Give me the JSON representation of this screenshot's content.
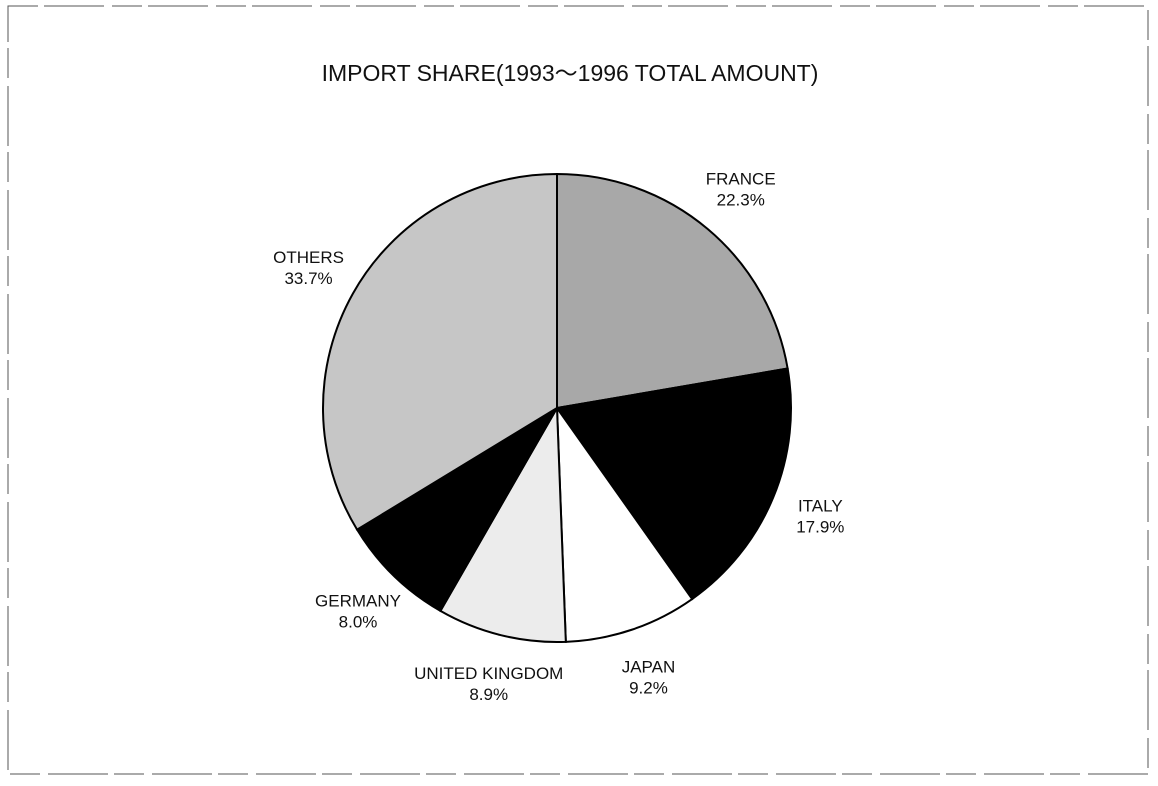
{
  "chart_data": {
    "type": "pie",
    "title": "IMPORT SHARE(1993～1996 TOTAL AMOUNT)",
    "categories": [
      "FRANCE",
      "ITALY",
      "JAPAN",
      "UNITED KINGDOM",
      "GERMANY",
      "OTHERS"
    ],
    "values": [
      22.3,
      17.9,
      9.2,
      8.9,
      8.0,
      33.7
    ],
    "value_labels": [
      "22.3%",
      "17.9%",
      "9.2%",
      "8.9%",
      "8.0%",
      "33.7%"
    ],
    "colors": [
      "#a8a8a8",
      "#000000",
      "#ffffff",
      "#ececec",
      "#000000",
      "#c6c6c6"
    ]
  }
}
